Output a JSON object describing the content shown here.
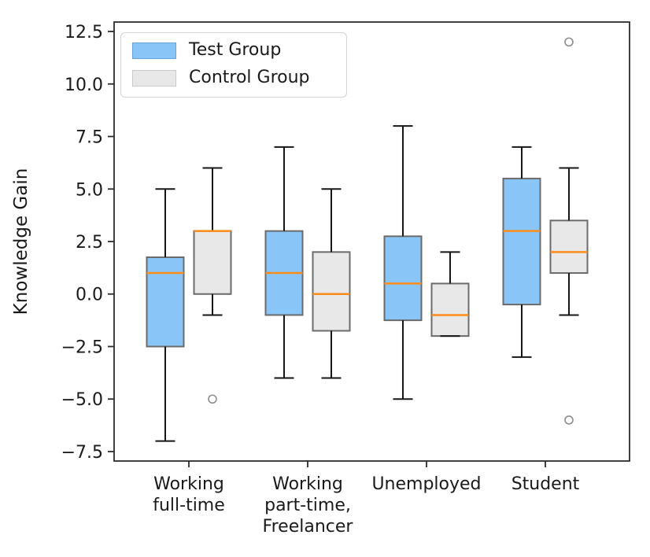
{
  "chart_data": {
    "type": "boxplot",
    "title": "",
    "xlabel": "",
    "ylabel": "Knowledge Gain",
    "ylim": [
      -7.95,
      12.95
    ],
    "yticks": [
      12.5,
      10.0,
      7.5,
      5.0,
      2.5,
      0.0,
      -2.5,
      -5.0,
      -7.5
    ],
    "ytick_labels": [
      "12.5",
      "10.0",
      "7.5",
      "5.0",
      "2.5",
      "0.0",
      "−2.5",
      "−5.0",
      "−7.5"
    ],
    "categories": [
      "Working full-time",
      "Working part-time, Freelancer",
      "Unemployed",
      "Student"
    ],
    "category_label_lines": [
      [
        "Working",
        "full-time"
      ],
      [
        "Working",
        "part-time,",
        "Freelancer"
      ],
      [
        "Unemployed"
      ],
      [
        "Student"
      ]
    ],
    "grid": false,
    "legend_position": "upper left",
    "series": [
      {
        "name": "Test Group",
        "color": "#8ac5f7",
        "legend_edge": "#69a2d8",
        "boxes": [
          {
            "whislo": -7.0,
            "q1": -2.5,
            "med": 1.0,
            "q3": 1.75,
            "whishi": 5.0,
            "fliers": []
          },
          {
            "whislo": -4.0,
            "q1": -1.0,
            "med": 1.0,
            "q3": 3.0,
            "whishi": 7.0,
            "fliers": []
          },
          {
            "whislo": -5.0,
            "q1": -1.25,
            "med": 0.5,
            "q3": 2.75,
            "whishi": 8.0,
            "fliers": []
          },
          {
            "whislo": -3.0,
            "q1": -0.5,
            "med": 3.0,
            "q3": 5.5,
            "whishi": 7.0,
            "fliers": []
          }
        ]
      },
      {
        "name": "Control Group",
        "color": "#e8e8e8",
        "legend_edge": "#c9c9c9",
        "boxes": [
          {
            "whislo": -1.0,
            "q1": 0.0,
            "med": 3.0,
            "q3": 3.0,
            "whishi": 6.0,
            "fliers": [
              -5.0
            ]
          },
          {
            "whislo": -4.0,
            "q1": -1.75,
            "med": 0.0,
            "q3": 2.0,
            "whishi": 5.0,
            "fliers": []
          },
          {
            "whislo": -2.0,
            "q1": -2.0,
            "med": -1.0,
            "q3": 0.5,
            "whishi": 2.0,
            "fliers": []
          },
          {
            "whislo": -1.0,
            "q1": 1.0,
            "med": 2.0,
            "q3": 3.5,
            "whishi": 6.0,
            "fliers": [
              12.0,
              -6.0
            ]
          }
        ]
      }
    ],
    "style": {
      "median_color": "#ff8c1a",
      "box_edge_color": "#6b6b6b",
      "whisker_color": "#161616",
      "axis_color": "#2b2b2b",
      "text_color": "#1a1a1a",
      "flier_color": "#8c8c8c",
      "background": "#ffffff"
    }
  }
}
